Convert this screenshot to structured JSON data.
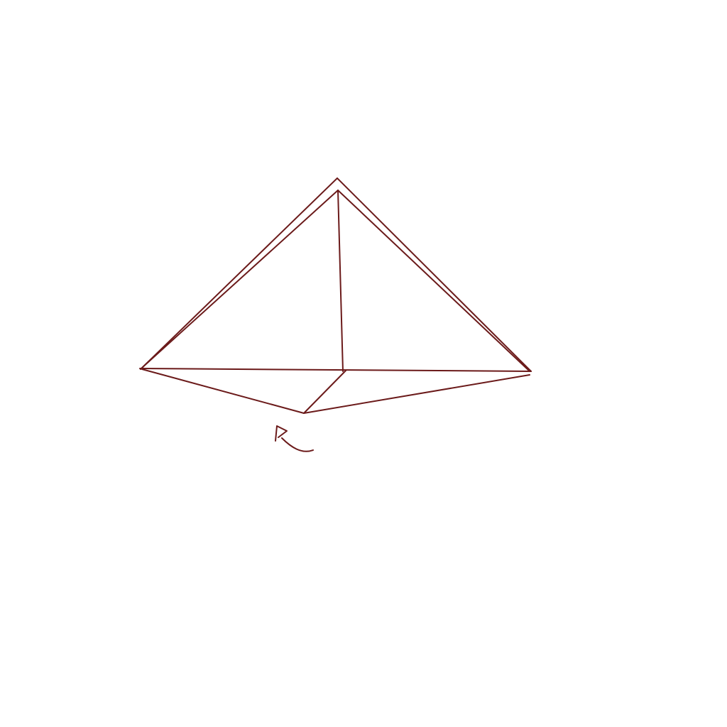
{
  "drawing": {
    "stroke_color": "#6b1a1a",
    "background": "#ffffff",
    "strokes": [
      "outer-left-edge",
      "outer-right-edge",
      "inner-left-edge",
      "inner-right-edge",
      "vertical-edge",
      "base-horizontal-edge",
      "lower-left-edge",
      "lower-right-edge",
      "center-to-front-edge",
      "arrow-curve",
      "arrow-head"
    ]
  }
}
